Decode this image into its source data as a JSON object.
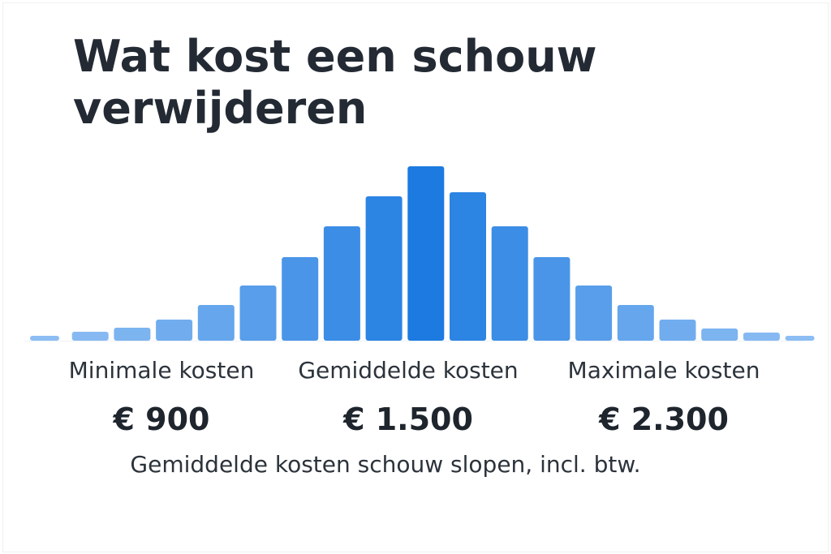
{
  "title": "Wat kost een schouw verwijderen",
  "chart_data": {
    "type": "bar",
    "title": "Wat kost een schouw verwijderen",
    "xlabel": "",
    "ylabel": "",
    "values": [
      6,
      11,
      16,
      26,
      44,
      68,
      103,
      141,
      178,
      215,
      183,
      141,
      103,
      68,
      44,
      26,
      15,
      10,
      6
    ],
    "ylim": [
      0,
      215
    ],
    "grid": false,
    "colors": {
      "light": "#8cbdf3",
      "dark": "#1c7ae0"
    }
  },
  "stats": [
    {
      "label": "Minimale kosten",
      "value": "€ 900"
    },
    {
      "label": "Gemiddelde kosten",
      "value": "€ 1.500"
    },
    {
      "label": "Maximale kosten",
      "value": "€ 2.300"
    }
  ],
  "caption": "Gemiddelde kosten schouw slopen, incl. btw."
}
